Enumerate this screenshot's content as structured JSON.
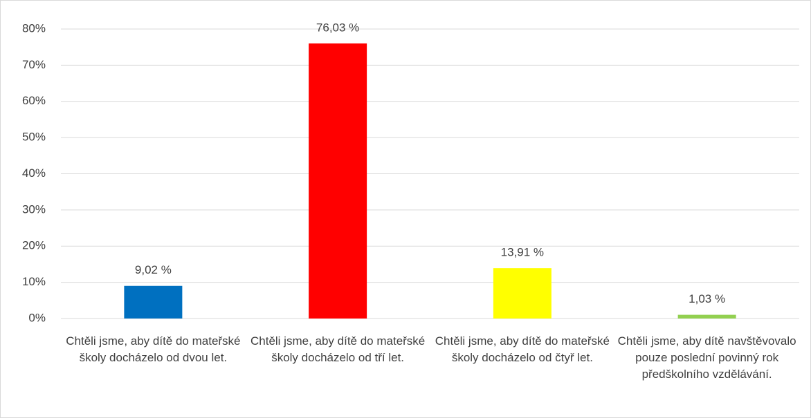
{
  "chart_data": {
    "type": "bar",
    "categories": [
      "Chtěli jsme, aby dítě do mateřské školy docházelo od dvou let.",
      "Chtěli jsme, aby dítě do mateřské školy docházelo od tří let.",
      "Chtěli jsme, aby dítě do mateřské školy docházelo od čtyř let.",
      "Chtěli jsme, aby dítě navštěvovalo pouze poslední povinný rok předškolního vzdělávání."
    ],
    "values": [
      9.02,
      76.03,
      13.91,
      1.03
    ],
    "value_labels": [
      "9,02 %",
      "76,03 %",
      "13,91 %",
      "1,03 %"
    ],
    "colors": [
      "#0070c0",
      "#ff0000",
      "#ffff00",
      "#92d050"
    ],
    "ylim": [
      0,
      80
    ],
    "yticks": [
      {
        "value": 0,
        "label": "0%"
      },
      {
        "value": 10,
        "label": "10%"
      },
      {
        "value": 20,
        "label": "20%"
      },
      {
        "value": 30,
        "label": "30%"
      },
      {
        "value": 40,
        "label": "40%"
      },
      {
        "value": 50,
        "label": "50%"
      },
      {
        "value": 60,
        "label": "60%"
      },
      {
        "value": 70,
        "label": "70%"
      },
      {
        "value": 80,
        "label": "80%"
      }
    ],
    "grid": true
  }
}
